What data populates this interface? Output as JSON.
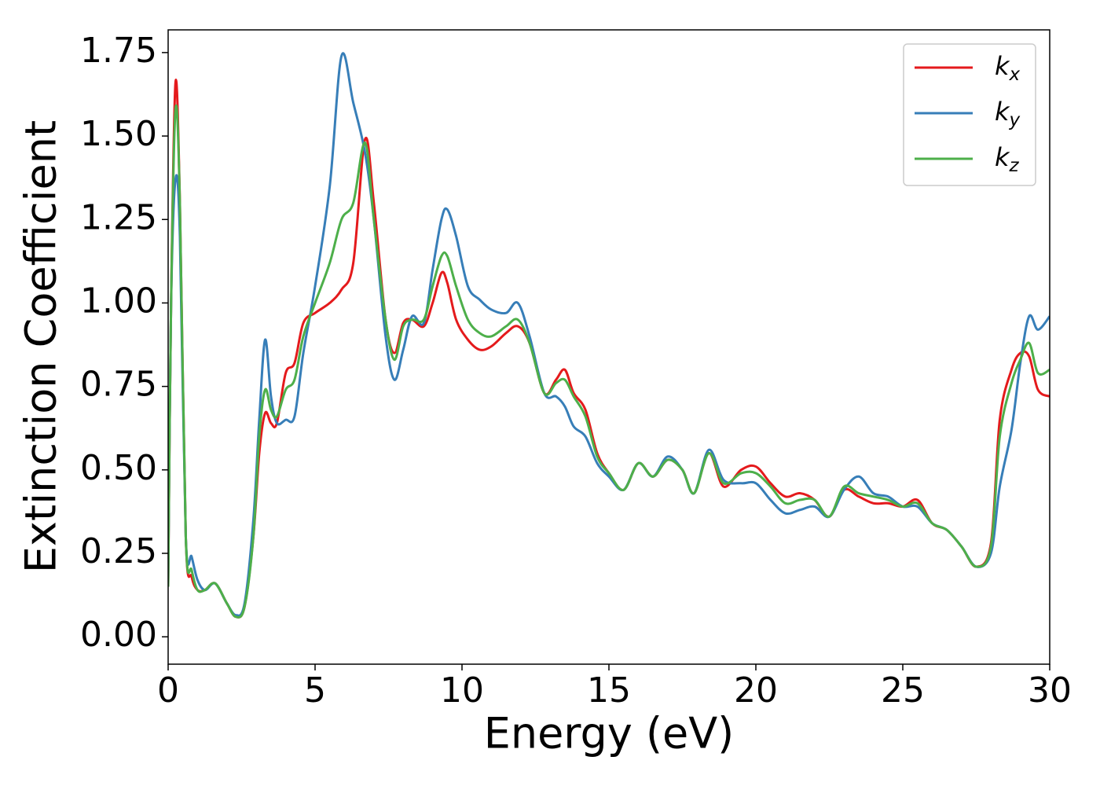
{
  "chart_data": {
    "type": "line",
    "xlabel": "Energy (eV)",
    "ylabel": "Extinction Coefficient",
    "x": [
      0,
      0.1,
      0.25,
      0.4,
      0.6,
      0.8,
      1.0,
      1.25,
      1.6,
      2.0,
      2.3,
      2.6,
      2.9,
      3.1,
      3.3,
      3.5,
      3.7,
      4.0,
      4.3,
      4.6,
      5.0,
      5.5,
      5.9,
      6.3,
      6.7,
      7.0,
      7.4,
      7.7,
      8.0,
      8.3,
      8.7,
      9.0,
      9.3,
      9.5,
      9.8,
      10.2,
      10.6,
      11.0,
      11.5,
      11.9,
      12.3,
      12.8,
      13.2,
      13.5,
      13.8,
      14.2,
      14.6,
      15.0,
      15.5,
      16.0,
      16.5,
      17.0,
      17.5,
      17.9,
      18.4,
      18.9,
      19.5,
      20.0,
      20.5,
      21.0,
      21.5,
      22.0,
      22.5,
      23.0,
      23.5,
      24.0,
      24.5,
      25.0,
      25.5,
      26.0,
      26.5,
      27.0,
      27.5,
      28.0,
      28.3,
      28.7,
      29.0,
      29.3,
      29.6,
      30.0
    ],
    "series": [
      {
        "name": "kx",
        "color": "#e41a1c",
        "values": [
          0.15,
          1.0,
          1.66,
          1.3,
          0.3,
          0.18,
          0.14,
          0.14,
          0.16,
          0.1,
          0.06,
          0.09,
          0.3,
          0.55,
          0.67,
          0.64,
          0.64,
          0.79,
          0.82,
          0.94,
          0.97,
          1.0,
          1.04,
          1.12,
          1.49,
          1.3,
          0.95,
          0.85,
          0.94,
          0.95,
          0.93,
          1.0,
          1.09,
          1.06,
          0.95,
          0.89,
          0.86,
          0.87,
          0.91,
          0.93,
          0.88,
          0.73,
          0.77,
          0.8,
          0.73,
          0.68,
          0.55,
          0.49,
          0.44,
          0.52,
          0.48,
          0.53,
          0.5,
          0.43,
          0.55,
          0.45,
          0.5,
          0.51,
          0.46,
          0.42,
          0.43,
          0.41,
          0.36,
          0.44,
          0.42,
          0.4,
          0.4,
          0.39,
          0.41,
          0.34,
          0.32,
          0.27,
          0.21,
          0.28,
          0.65,
          0.8,
          0.85,
          0.84,
          0.74,
          0.72
        ]
      },
      {
        "name": "ky",
        "color": "#377eb8",
        "values": [
          0.15,
          1.0,
          1.37,
          1.2,
          0.3,
          0.24,
          0.17,
          0.14,
          0.16,
          0.1,
          0.065,
          0.1,
          0.35,
          0.65,
          0.89,
          0.72,
          0.64,
          0.65,
          0.66,
          0.85,
          1.05,
          1.35,
          1.74,
          1.6,
          1.45,
          1.25,
          0.9,
          0.77,
          0.86,
          0.96,
          0.94,
          1.1,
          1.25,
          1.28,
          1.2,
          1.05,
          1.01,
          0.98,
          0.97,
          1.0,
          0.9,
          0.73,
          0.72,
          0.69,
          0.63,
          0.6,
          0.52,
          0.48,
          0.44,
          0.52,
          0.48,
          0.54,
          0.5,
          0.43,
          0.56,
          0.47,
          0.46,
          0.46,
          0.41,
          0.37,
          0.38,
          0.39,
          0.36,
          0.44,
          0.48,
          0.43,
          0.42,
          0.39,
          0.39,
          0.34,
          0.32,
          0.27,
          0.21,
          0.25,
          0.45,
          0.62,
          0.82,
          0.96,
          0.92,
          0.96
        ]
      },
      {
        "name": "kz",
        "color": "#4daf4a",
        "values": [
          0.15,
          1.0,
          1.58,
          1.3,
          0.3,
          0.2,
          0.14,
          0.14,
          0.16,
          0.1,
          0.06,
          0.09,
          0.3,
          0.6,
          0.74,
          0.68,
          0.66,
          0.74,
          0.77,
          0.9,
          1.0,
          1.12,
          1.25,
          1.3,
          1.48,
          1.25,
          0.95,
          0.83,
          0.93,
          0.95,
          0.95,
          1.05,
          1.14,
          1.14,
          1.05,
          0.95,
          0.91,
          0.9,
          0.93,
          0.95,
          0.88,
          0.73,
          0.76,
          0.77,
          0.72,
          0.66,
          0.54,
          0.49,
          0.44,
          0.52,
          0.48,
          0.53,
          0.5,
          0.43,
          0.55,
          0.46,
          0.49,
          0.49,
          0.45,
          0.4,
          0.41,
          0.41,
          0.36,
          0.45,
          0.43,
          0.42,
          0.41,
          0.39,
          0.4,
          0.34,
          0.32,
          0.27,
          0.21,
          0.27,
          0.6,
          0.76,
          0.83,
          0.88,
          0.79,
          0.8
        ]
      }
    ],
    "xlim": [
      0,
      30
    ],
    "xticks": [
      0,
      5,
      10,
      15,
      20,
      25,
      30
    ],
    "ylim": [
      -0.082,
      1.818
    ],
    "yticks": [
      {
        "value": 0,
        "label": "0.00"
      },
      0.25,
      {
        "value": 0.5,
        "label": "0.50"
      },
      0.75,
      {
        "value": 1,
        "label": "1.00"
      },
      1.25,
      {
        "value": 1.5,
        "label": "1.50"
      },
      1.75
    ],
    "legend": "upper right"
  }
}
